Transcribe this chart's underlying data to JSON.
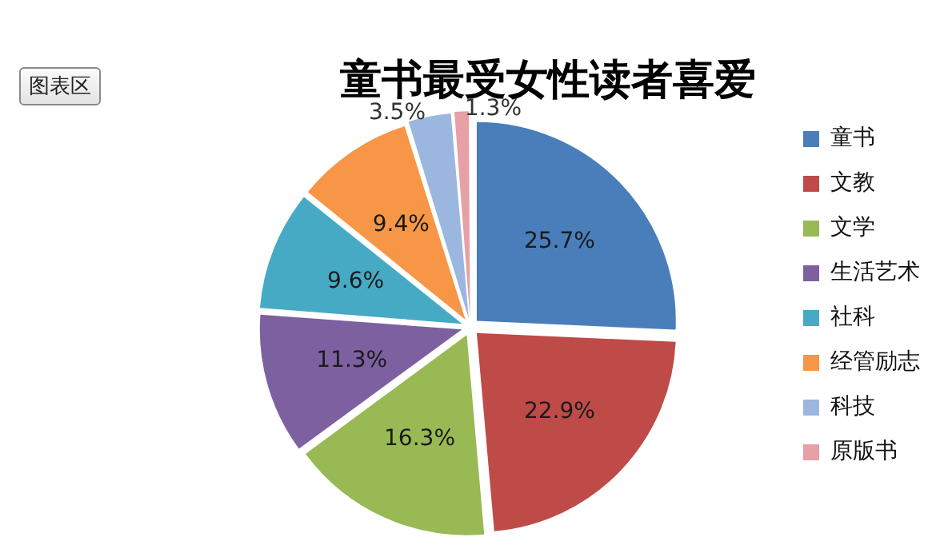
{
  "chart_data": {
    "type": "pie",
    "title": "童书最受女性读者喜爱",
    "categories": [
      "童书",
      "文教",
      "文学",
      "生活艺术",
      "社科",
      "经管励志",
      "科技",
      "原版书"
    ],
    "values": [
      25.7,
      22.9,
      16.3,
      11.3,
      9.6,
      9.4,
      3.5,
      1.3
    ],
    "colors": [
      "#4a7ebb",
      "#be4b48",
      "#98b954",
      "#7d60a0",
      "#46aac5",
      "#f79646",
      "#9bb7e0",
      "#e6a0a6"
    ],
    "value_labels": [
      "25.7%",
      "22.9%",
      "16.3%",
      "11.3%",
      "9.6%",
      "9.4%",
      "3.5%",
      "1.3%"
    ],
    "legend": "right",
    "annotations": [
      "图表区"
    ]
  }
}
